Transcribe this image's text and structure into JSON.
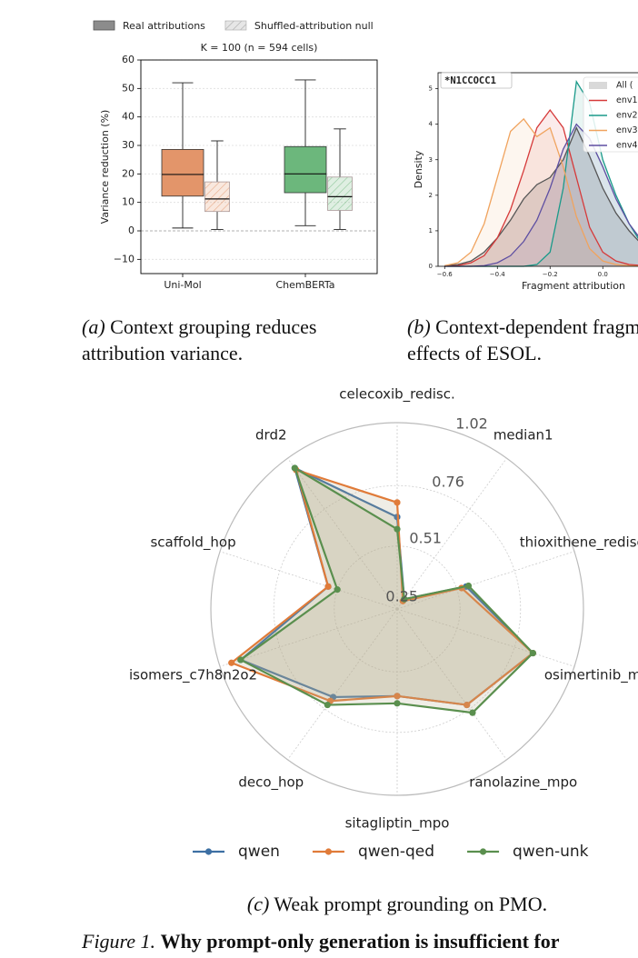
{
  "chart_data": [
    {
      "type": "box",
      "title": "K = 100  (n = 594 cells)",
      "ylabel": "Variance reduction (%)",
      "categories": [
        "Uni-Mol",
        "ChemBERTa"
      ],
      "colors": [
        "#e3956a",
        "#6cb77c"
      ],
      "ylim": [
        -15,
        60
      ],
      "yticks": [
        {
          "value": -10,
          "label": "−10"
        },
        0,
        10,
        20,
        30,
        40,
        50,
        60
      ],
      "grid": true,
      "legend_position": "upper center",
      "series": [
        {
          "name": "Real attributions",
          "hatch": false,
          "values": [
            {
              "min": 1,
              "q1": 12.2,
              "median": 19.8,
              "q3": 28.6,
              "max": 52
            },
            {
              "min": 1.8,
              "q1": 13.4,
              "median": 20,
              "q3": 29.6,
              "max": 53
            }
          ]
        },
        {
          "name": "Shuffled-attribution null",
          "hatch": true,
          "values": [
            {
              "min": 0.5,
              "q1": 6.8,
              "median": 11.2,
              "q3": 17.2,
              "max": 31.6
            },
            {
              "min": 0.5,
              "q1": 7.2,
              "median": 12,
              "q3": 18.9,
              "max": 35.8
            }
          ]
        }
      ]
    },
    {
      "type": "density",
      "annotation": "*N1CCOCC1",
      "xlabel": "Fragment attribution",
      "ylabel": "Density",
      "x": [
        -0.6,
        -0.55,
        -0.5,
        -0.45,
        -0.4,
        -0.35,
        -0.3,
        -0.25,
        -0.2,
        -0.15,
        -0.1,
        -0.05,
        0,
        0.05,
        0.1,
        0.15,
        0.2,
        0.25,
        0.3,
        0.35,
        0.4
      ],
      "xlim": [
        -0.625,
        0.45
      ],
      "ylim": [
        0,
        5.45
      ],
      "xticks": [
        {
          "value": -0.6,
          "label": "−0.6"
        },
        {
          "value": -0.4,
          "label": "−0.4"
        },
        {
          "value": -0.2,
          "label": "−0.2"
        },
        {
          "value": 0,
          "label": "0.0"
        }
      ],
      "yticks": [
        0,
        1,
        2,
        3,
        4,
        5
      ],
      "legend_position": "upper right",
      "series": [
        {
          "name": "All (",
          "color": "#7f7f7f",
          "values": [
            0.02,
            0.05,
            0.15,
            0.4,
            0.8,
            1.3,
            1.9,
            2.3,
            2.5,
            3.0,
            3.9,
            3.1,
            2.2,
            1.5,
            1.0,
            0.6,
            0.35,
            0.2,
            0.1,
            0.05,
            0.02
          ]
        },
        {
          "name": "env1",
          "color": "#d63a3a",
          "values": [
            0,
            0.02,
            0.1,
            0.3,
            0.8,
            1.6,
            2.7,
            3.9,
            4.4,
            3.9,
            2.5,
            1.1,
            0.4,
            0.15,
            0.05,
            0.02,
            0,
            0,
            0,
            0,
            0
          ]
        },
        {
          "name": "env2",
          "color": "#1a9a8a",
          "values": [
            0,
            0,
            0,
            0,
            0,
            0,
            0,
            0.05,
            0.4,
            2.2,
            5.2,
            4.6,
            3.0,
            2.0,
            1.2,
            0.6,
            0.3,
            0.15,
            0.05,
            0.02,
            0
          ]
        },
        {
          "name": "env3",
          "color": "#f0a35e",
          "values": [
            0.02,
            0.1,
            0.4,
            1.2,
            2.5,
            3.8,
            4.15,
            3.65,
            3.9,
            2.8,
            1.4,
            0.5,
            0.15,
            0.05,
            0.02,
            0,
            0,
            0,
            0,
            0,
            0
          ]
        },
        {
          "name": "env4",
          "color": "#5e4fa2",
          "values": [
            0,
            0,
            0,
            0.02,
            0.1,
            0.3,
            0.7,
            1.3,
            2.2,
            3.3,
            4.0,
            3.6,
            2.8,
            1.9,
            1.2,
            0.7,
            0.4,
            0.2,
            0.1,
            0.05,
            0.02
          ]
        }
      ]
    },
    {
      "type": "radar",
      "categories": [
        "celecoxib_redisc.",
        "median1",
        "thioxithene_rediscovery",
        "osimertinib_mpo",
        "ranolazine_mpo",
        "sitagliptin_mpo",
        "deco_hop",
        "isomers_c7h8n2o2",
        "scaffold_hop",
        "drd2"
      ],
      "rlim": [
        0.25,
        1.02
      ],
      "rticks": [
        0.25,
        0.51,
        0.76,
        1.02
      ],
      "legend_position": "lower center",
      "series": [
        {
          "name": "qwen",
          "color": "#3d6fa3",
          "values": [
            0.63,
            0.3,
            0.55,
            0.84,
            0.74,
            0.61,
            0.7,
            0.93,
            0.55,
            0.97
          ]
        },
        {
          "name": "qwen-qed",
          "color": "#e07b39",
          "values": [
            0.69,
            0.29,
            0.53,
            0.84,
            0.74,
            0.61,
            0.72,
            0.97,
            0.55,
            0.96
          ]
        },
        {
          "name": "qwen-unk",
          "color": "#5a8f4e",
          "values": [
            0.58,
            0.3,
            0.56,
            0.84,
            0.78,
            0.64,
            0.74,
            0.93,
            0.51,
            0.97
          ]
        }
      ]
    }
  ],
  "captions": [
    {
      "label": "(a)",
      "text": "Context grouping reduces attribution variance."
    },
    {
      "label": "(b)",
      "text": "Context-dependent fragment effects of ESOL."
    },
    {
      "label": "(c)",
      "text": "Weak prompt grounding on PMO."
    }
  ],
  "figure_caption": {
    "label": "Figure 1.",
    "text": "Why prompt-only generation is insufficient for"
  }
}
